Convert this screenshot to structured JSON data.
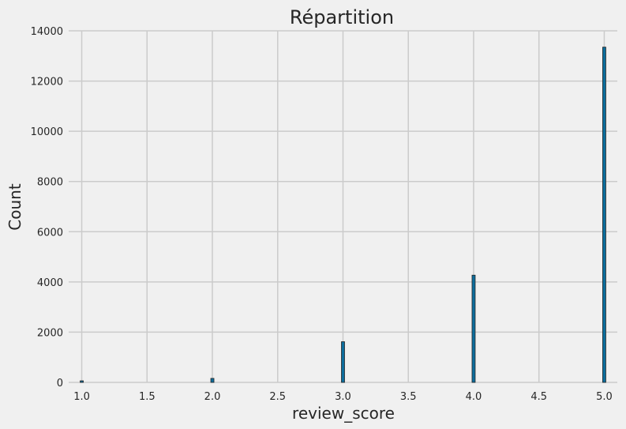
{
  "chart_data": {
    "type": "bar",
    "title": "Répartition",
    "xlabel": "review_score",
    "ylabel": "Count",
    "xlim": [
      0.9,
      5.1
    ],
    "ylim": [
      0,
      14000
    ],
    "x_ticks": [
      "1.0",
      "1.5",
      "2.0",
      "2.5",
      "3.0",
      "3.5",
      "4.0",
      "4.5",
      "5.0"
    ],
    "y_ticks": [
      "0",
      "2000",
      "4000",
      "6000",
      "8000",
      "10000",
      "12000",
      "14000"
    ],
    "grid": true,
    "bars": [
      {
        "x": 1.0,
        "value": 40
      },
      {
        "x": 2.0,
        "value": 160
      },
      {
        "x": 3.0,
        "value": 1620
      },
      {
        "x": 4.0,
        "value": 4270
      },
      {
        "x": 5.0,
        "value": 13350
      }
    ],
    "bar_color": "#0c6d9c",
    "bar_edge_color": "#262626",
    "background": "#f0f0f0",
    "grid_color": "#cbcbcb"
  }
}
